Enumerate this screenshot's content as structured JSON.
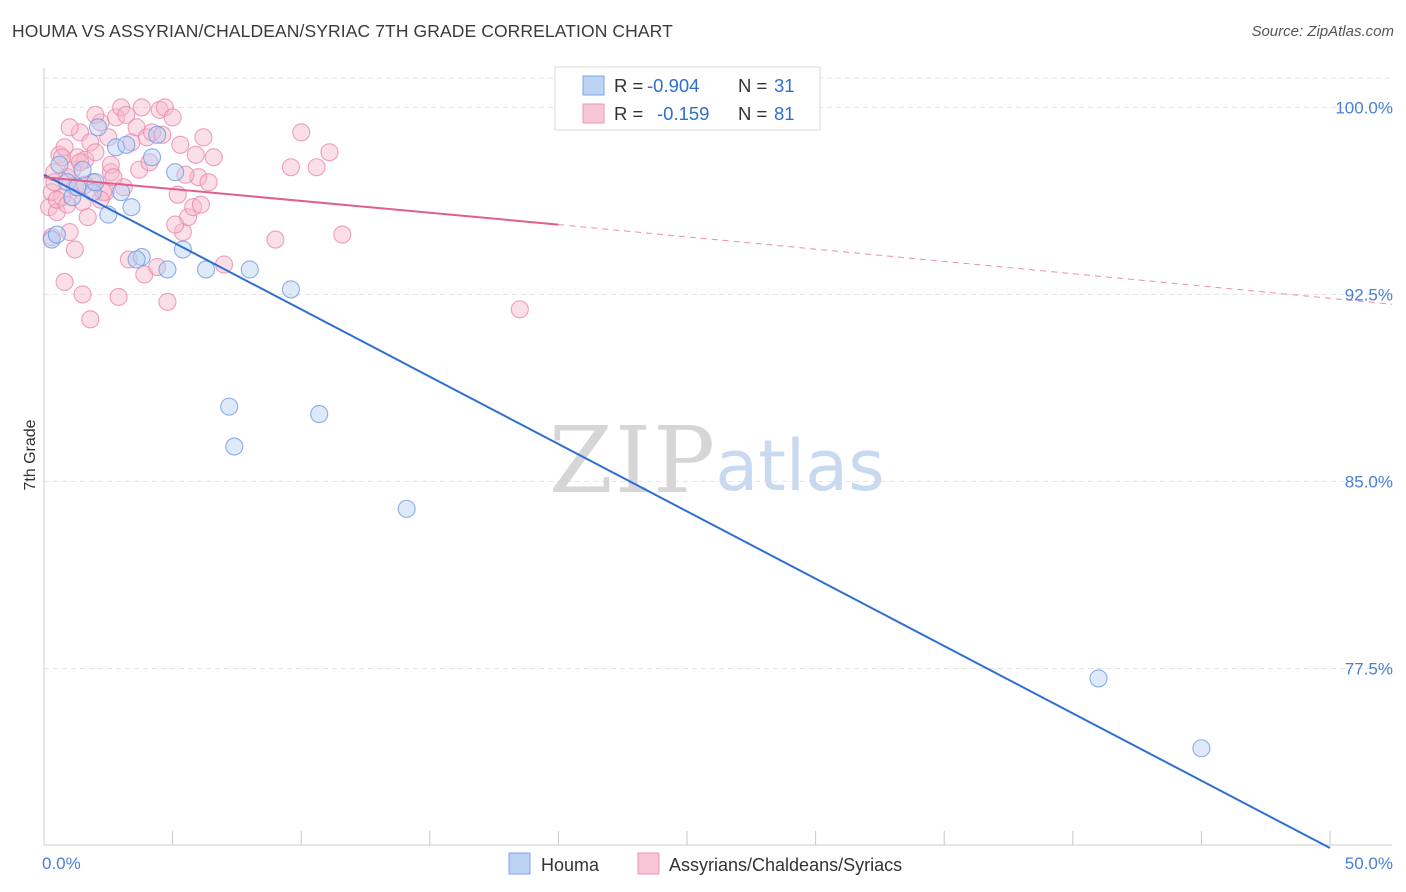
{
  "header": {
    "title": "HOUMA VS ASSYRIAN/CHALDEAN/SYRIAC 7TH GRADE CORRELATION CHART",
    "source": "Source: ZipAtlas.com"
  },
  "watermark": {
    "zip": "ZIP",
    "atlas": "atlas"
  },
  "legend": {
    "r_label": "R =",
    "n_label": "N =",
    "rows": [
      {
        "r": "-0.904",
        "n": "31"
      },
      {
        "r": "-0.159",
        "n": "81"
      }
    ]
  },
  "chart_data": {
    "type": "scatter",
    "title": "HOUMA VS ASSYRIAN/CHALDEAN/SYRIAC 7TH GRADE CORRELATION CHART",
    "xlabel": "",
    "ylabel": "7th Grade",
    "xlim": [
      0,
      50
    ],
    "ylim": [
      70.5,
      101.5
    ],
    "x_tick_labels": [
      "0.0%",
      "50.0%"
    ],
    "y_ticks": [
      100.0,
      92.5,
      85.0,
      77.5
    ],
    "y_tick_labels": [
      "100.0%",
      "92.5%",
      "85.0%",
      "77.5%"
    ],
    "grid": true,
    "colors": {
      "houma": "#5b8fe0",
      "assyrian": "#ea8aab",
      "houma_line": "#2f6fd0",
      "assyrian_line": "#e0608d"
    },
    "series": [
      {
        "name": "Houma",
        "r": -0.904,
        "n": 31,
        "trend": {
          "x": [
            0.0,
            50.0
          ],
          "y": [
            97.3,
            70.3
          ],
          "style": "solid"
        },
        "points": [
          [
            0.3,
            94.7
          ],
          [
            0.6,
            97.7
          ],
          [
            0.9,
            97.0
          ],
          [
            1.1,
            96.4
          ],
          [
            1.5,
            97.5
          ],
          [
            1.9,
            96.6
          ],
          [
            2.1,
            99.2
          ],
          [
            2.5,
            95.7
          ],
          [
            2.8,
            98.4
          ],
          [
            3.0,
            96.6
          ],
          [
            3.2,
            98.5
          ],
          [
            3.4,
            96.0
          ],
          [
            3.8,
            94.0
          ],
          [
            4.2,
            98.0
          ],
          [
            4.4,
            98.9
          ],
          [
            5.1,
            97.4
          ],
          [
            5.4,
            94.3
          ],
          [
            6.3,
            93.5
          ],
          [
            7.2,
            88.0
          ],
          [
            7.4,
            86.4
          ],
          [
            8.0,
            93.5
          ],
          [
            9.6,
            92.7
          ],
          [
            10.7,
            87.7
          ],
          [
            14.1,
            83.9
          ],
          [
            2.0,
            97.0
          ],
          [
            1.3,
            96.8
          ],
          [
            3.6,
            93.9
          ],
          [
            4.8,
            93.5
          ],
          [
            0.5,
            94.9
          ],
          [
            41.0,
            77.1
          ],
          [
            45.0,
            74.3
          ]
        ]
      },
      {
        "name": "Assyrians/Chaldeans/Syriacs",
        "r": -0.159,
        "n": 81,
        "trend": {
          "x": [
            0.0,
            20.0,
            50.0
          ],
          "y": [
            97.2,
            95.3,
            92.1
          ],
          "solid_until_x": 20.0
        },
        "points": [
          [
            0.2,
            96.0
          ],
          [
            0.3,
            96.6
          ],
          [
            0.4,
            97.0
          ],
          [
            0.5,
            95.8
          ],
          [
            0.6,
            98.1
          ],
          [
            0.7,
            96.4
          ],
          [
            0.8,
            98.4
          ],
          [
            0.9,
            97.2
          ],
          [
            1.0,
            95.0
          ],
          [
            1.1,
            97.5
          ],
          [
            1.2,
            96.8
          ],
          [
            1.3,
            98.0
          ],
          [
            1.4,
            99.0
          ],
          [
            1.5,
            96.2
          ],
          [
            1.6,
            97.9
          ],
          [
            1.7,
            95.6
          ],
          [
            1.8,
            98.6
          ],
          [
            1.9,
            97.0
          ],
          [
            2.0,
            98.2
          ],
          [
            2.2,
            99.4
          ],
          [
            2.4,
            96.6
          ],
          [
            2.5,
            98.8
          ],
          [
            2.6,
            97.4
          ],
          [
            2.8,
            99.6
          ],
          [
            3.0,
            100.0
          ],
          [
            3.2,
            99.7
          ],
          [
            3.4,
            98.6
          ],
          [
            3.6,
            99.2
          ],
          [
            3.8,
            100.0
          ],
          [
            4.0,
            98.8
          ],
          [
            4.2,
            99.0
          ],
          [
            4.5,
            99.9
          ],
          [
            4.7,
            100.0
          ],
          [
            5.0,
            99.6
          ],
          [
            5.2,
            96.5
          ],
          [
            5.4,
            95.0
          ],
          [
            5.6,
            95.6
          ],
          [
            5.8,
            96.0
          ],
          [
            6.0,
            97.2
          ],
          [
            6.2,
            98.8
          ],
          [
            6.4,
            97.0
          ],
          [
            6.6,
            98.0
          ],
          [
            7.0,
            93.7
          ],
          [
            9.0,
            94.7
          ],
          [
            9.6,
            97.6
          ],
          [
            10.0,
            99.0
          ],
          [
            10.6,
            97.6
          ],
          [
            11.1,
            98.2
          ],
          [
            11.6,
            94.9
          ],
          [
            0.3,
            94.8
          ],
          [
            0.5,
            96.3
          ],
          [
            0.8,
            93.0
          ],
          [
            1.2,
            94.3
          ],
          [
            1.5,
            92.5
          ],
          [
            1.8,
            91.5
          ],
          [
            2.3,
            96.6
          ],
          [
            2.9,
            92.4
          ],
          [
            3.3,
            93.9
          ],
          [
            3.9,
            93.3
          ],
          [
            4.4,
            93.6
          ],
          [
            4.8,
            92.2
          ],
          [
            5.1,
            95.3
          ],
          [
            5.5,
            97.3
          ],
          [
            6.1,
            96.1
          ],
          [
            0.4,
            97.4
          ],
          [
            0.7,
            98.0
          ],
          [
            1.0,
            99.2
          ],
          [
            1.4,
            97.8
          ],
          [
            2.0,
            99.7
          ],
          [
            2.6,
            97.7
          ],
          [
            3.1,
            96.8
          ],
          [
            3.7,
            97.5
          ],
          [
            4.1,
            97.8
          ],
          [
            4.6,
            98.9
          ],
          [
            5.3,
            98.5
          ],
          [
            5.9,
            98.1
          ],
          [
            1.6,
            96.9
          ],
          [
            2.2,
            96.3
          ],
          [
            2.7,
            97.2
          ],
          [
            18.5,
            91.9
          ],
          [
            0.9,
            96.1
          ]
        ]
      }
    ]
  },
  "bottom_legend": {
    "items": [
      {
        "label": "Houma"
      },
      {
        "label": "Assyrians/Chaldeans/Syriacs"
      }
    ]
  }
}
